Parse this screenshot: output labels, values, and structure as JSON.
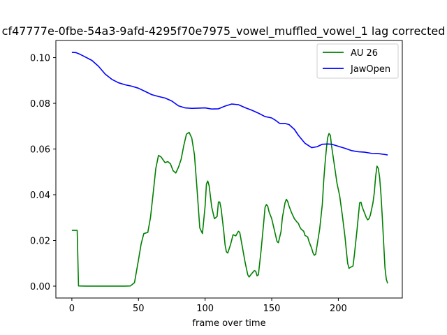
{
  "chart_data": {
    "type": "line",
    "title": "cf47777e-0fbe-54a3-9afd-4295f70e7975_vowel_muffled_vowel_1  lag corrected",
    "xlabel": "frame over time",
    "ylabel": "",
    "xlim": [
      -12,
      248
    ],
    "ylim": [
      -0.0052,
      0.1075
    ],
    "x_ticks": [
      0,
      50,
      100,
      150,
      200
    ],
    "y_ticks": [
      0.0,
      0.02,
      0.04,
      0.06,
      0.08,
      0.1
    ],
    "y_tick_labels": [
      "0.00",
      "0.02",
      "0.04",
      "0.06",
      "0.08",
      "0.10"
    ],
    "grid": false,
    "legend_position": "top-right",
    "series": [
      {
        "name": "AU 26",
        "color": "#008000",
        "points": [
          [
            0,
            0.0244
          ],
          [
            4,
            0.0244
          ],
          [
            5,
            0.0001
          ],
          [
            10,
            0.0
          ],
          [
            20,
            0.0
          ],
          [
            30,
            0.0
          ],
          [
            40,
            0.0
          ],
          [
            44,
            0.0001
          ],
          [
            47,
            0.0015
          ],
          [
            50,
            0.0115
          ],
          [
            52,
            0.0185
          ],
          [
            54,
            0.023
          ],
          [
            57,
            0.0235
          ],
          [
            59,
            0.03
          ],
          [
            61,
            0.0405
          ],
          [
            63,
            0.0515
          ],
          [
            65,
            0.0572
          ],
          [
            67,
            0.0565
          ],
          [
            70,
            0.054
          ],
          [
            72,
            0.0545
          ],
          [
            74,
            0.0535
          ],
          [
            76,
            0.0505
          ],
          [
            78,
            0.0495
          ],
          [
            80,
            0.052
          ],
          [
            82,
            0.0555
          ],
          [
            84,
            0.0615
          ],
          [
            86,
            0.0665
          ],
          [
            88,
            0.0673
          ],
          [
            90,
            0.0648
          ],
          [
            92,
            0.0575
          ],
          [
            94,
            0.042
          ],
          [
            96,
            0.0255
          ],
          [
            98,
            0.023
          ],
          [
            100,
            0.035
          ],
          [
            101,
            0.0447
          ],
          [
            102,
            0.046
          ],
          [
            103,
            0.044
          ],
          [
            105,
            0.0345
          ],
          [
            107,
            0.0295
          ],
          [
            109,
            0.0305
          ],
          [
            110,
            0.0368
          ],
          [
            111,
            0.0368
          ],
          [
            112,
            0.034
          ],
          [
            114,
            0.024
          ],
          [
            115,
            0.018
          ],
          [
            116,
            0.015
          ],
          [
            117,
            0.0145
          ],
          [
            119,
            0.018
          ],
          [
            121,
            0.0225
          ],
          [
            123,
            0.022
          ],
          [
            125,
            0.024
          ],
          [
            126,
            0.0235
          ],
          [
            128,
            0.017
          ],
          [
            130,
            0.0105
          ],
          [
            132,
            0.005
          ],
          [
            133,
            0.004
          ],
          [
            135,
            0.0055
          ],
          [
            137,
            0.0068
          ],
          [
            138,
            0.0065
          ],
          [
            139,
            0.0045
          ],
          [
            140,
            0.005
          ],
          [
            142,
            0.0155
          ],
          [
            144,
            0.028
          ],
          [
            145,
            0.0345
          ],
          [
            146,
            0.0357
          ],
          [
            147,
            0.035
          ],
          [
            148,
            0.0325
          ],
          [
            150,
            0.0295
          ],
          [
            152,
            0.0245
          ],
          [
            154,
            0.0195
          ],
          [
            155,
            0.019
          ],
          [
            157,
            0.024
          ],
          [
            158,
            0.03
          ],
          [
            160,
            0.0365
          ],
          [
            161,
            0.038
          ],
          [
            162,
            0.037
          ],
          [
            163,
            0.035
          ],
          [
            165,
            0.032
          ],
          [
            167,
            0.0295
          ],
          [
            169,
            0.028
          ],
          [
            170,
            0.0275
          ],
          [
            171,
            0.026
          ],
          [
            172,
            0.025
          ],
          [
            174,
            0.024
          ],
          [
            175,
            0.0222
          ],
          [
            177,
            0.0215
          ],
          [
            178,
            0.0195
          ],
          [
            180,
            0.0165
          ],
          [
            181,
            0.0145
          ],
          [
            182,
            0.0135
          ],
          [
            183,
            0.014
          ],
          [
            186,
            0.025
          ],
          [
            188,
            0.036
          ],
          [
            189,
            0.046
          ],
          [
            190,
            0.0535
          ],
          [
            191,
            0.06
          ],
          [
            192,
            0.065
          ],
          [
            193,
            0.0668
          ],
          [
            194,
            0.066
          ],
          [
            195,
            0.061
          ],
          [
            197,
            0.053
          ],
          [
            199,
            0.045
          ],
          [
            201,
            0.0395
          ],
          [
            203,
            0.031
          ],
          [
            205,
            0.0215
          ],
          [
            206,
            0.0155
          ],
          [
            207,
            0.01
          ],
          [
            208,
            0.0078
          ],
          [
            209,
            0.0082
          ],
          [
            211,
            0.0088
          ],
          [
            212,
            0.0135
          ],
          [
            214,
            0.0245
          ],
          [
            216,
            0.0365
          ],
          [
            217,
            0.0367
          ],
          [
            218,
            0.0345
          ],
          [
            220,
            0.0315
          ],
          [
            221,
            0.03
          ],
          [
            222,
            0.029
          ],
          [
            223,
            0.0295
          ],
          [
            224,
            0.031
          ],
          [
            226,
            0.0365
          ],
          [
            227,
            0.041
          ],
          [
            228,
            0.048
          ],
          [
            229,
            0.0525
          ],
          [
            230,
            0.0515
          ],
          [
            231,
            0.0475
          ],
          [
            232,
            0.04
          ],
          [
            233,
            0.03
          ],
          [
            234,
            0.019
          ],
          [
            235,
            0.008
          ],
          [
            236,
            0.003
          ],
          [
            237,
            0.0012
          ]
        ]
      },
      {
        "name": "JawOpen",
        "color": "#0000ff",
        "points": [
          [
            0,
            0.1023
          ],
          [
            3,
            0.1022
          ],
          [
            6,
            0.1015
          ],
          [
            10,
            0.1003
          ],
          [
            15,
            0.0988
          ],
          [
            20,
            0.0962
          ],
          [
            25,
            0.0928
          ],
          [
            30,
            0.0905
          ],
          [
            35,
            0.089
          ],
          [
            40,
            0.0881
          ],
          [
            45,
            0.0875
          ],
          [
            50,
            0.0866
          ],
          [
            55,
            0.0852
          ],
          [
            60,
            0.0838
          ],
          [
            65,
            0.083
          ],
          [
            70,
            0.0823
          ],
          [
            75,
            0.081
          ],
          [
            80,
            0.0789
          ],
          [
            85,
            0.078
          ],
          [
            90,
            0.0778
          ],
          [
            95,
            0.0779
          ],
          [
            100,
            0.078
          ],
          [
            105,
            0.0775
          ],
          [
            110,
            0.0776
          ],
          [
            115,
            0.0788
          ],
          [
            120,
            0.0797
          ],
          [
            125,
            0.0794
          ],
          [
            130,
            0.0781
          ],
          [
            135,
            0.077
          ],
          [
            140,
            0.0757
          ],
          [
            145,
            0.0742
          ],
          [
            150,
            0.0736
          ],
          [
            153,
            0.0725
          ],
          [
            156,
            0.0712
          ],
          [
            160,
            0.0712
          ],
          [
            163,
            0.0707
          ],
          [
            167,
            0.0686
          ],
          [
            170,
            0.066
          ],
          [
            175,
            0.0625
          ],
          [
            180,
            0.0606
          ],
          [
            184,
            0.061
          ],
          [
            188,
            0.0621
          ],
          [
            192,
            0.0622
          ],
          [
            195,
            0.0621
          ],
          [
            200,
            0.0612
          ],
          [
            205,
            0.0603
          ],
          [
            210,
            0.0593
          ],
          [
            215,
            0.0588
          ],
          [
            220,
            0.0586
          ],
          [
            225,
            0.0581
          ],
          [
            230,
            0.058
          ],
          [
            235,
            0.0576
          ],
          [
            237,
            0.0574
          ]
        ]
      }
    ]
  }
}
